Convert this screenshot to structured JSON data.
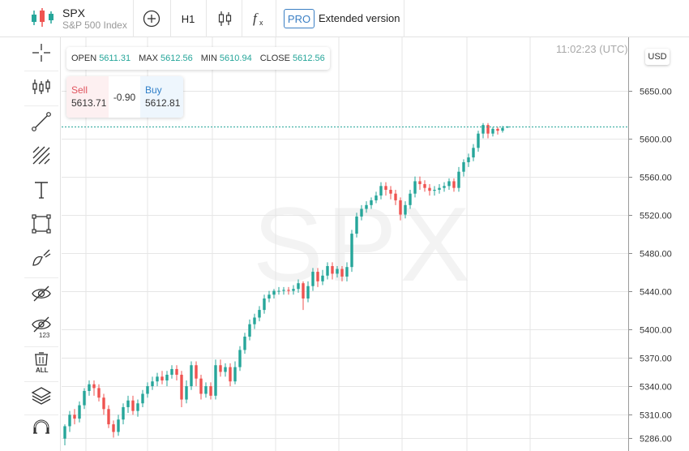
{
  "header": {
    "symbol": "SPX",
    "name": "S&P 500 Index",
    "timeframe": "H1",
    "pro_label": "PRO",
    "extended_label": "Extended version",
    "icons": [
      "candlestick-logo-icon",
      "add-circle-icon",
      "candle-type-icon",
      "function-fx-icon"
    ]
  },
  "toolbar": {
    "tools": [
      "crosshair-icon",
      "bars-icon",
      "trend-line-icon",
      "fibonacci-icon",
      "text-tool-icon",
      "rectangle-tool-icon",
      "brush-icon",
      "hide-drawings-icon",
      "hide-indicators-icon",
      "delete-all-icon",
      "layers-icon",
      "magnet-icon"
    ],
    "delete_all_label": "ALL",
    "hide_indicators_label": "123"
  },
  "ohlc": {
    "open_label": "OPEN",
    "open": "5611.31",
    "max_label": "MAX",
    "max": "5612.56",
    "min_label": "MIN",
    "min": "5610.94",
    "close_label": "CLOSE",
    "close": "5612.56"
  },
  "trade": {
    "sell_label": "Sell",
    "sell_price": "5613.71",
    "change": "-0.90",
    "buy_label": "Buy",
    "buy_price": "5612.81"
  },
  "clock": "11:02:23 (UTC)",
  "currency": "USD",
  "watermark": "SPX",
  "colors": {
    "up": "#26a69a",
    "down": "#ef5350",
    "grid": "#e6e6e6",
    "accent": "#3b7fc4",
    "price_line": "#26a69a"
  },
  "chart_data": {
    "type": "candlestick",
    "y_ticks": [
      "5650.00",
      "5600.00",
      "5560.00",
      "5520.00",
      "5480.00",
      "5440.00",
      "5400.00",
      "5370.00",
      "5340.00",
      "5310.00",
      "5286.00"
    ],
    "ylim": [
      5272,
      5706
    ],
    "last_price": 5612.56,
    "candles": [
      [
        5285,
        5298,
        5278,
        5300
      ],
      [
        5298,
        5310,
        5292,
        5314
      ],
      [
        5310,
        5306,
        5300,
        5316
      ],
      [
        5306,
        5320,
        5302,
        5324
      ],
      [
        5320,
        5335,
        5316,
        5338
      ],
      [
        5335,
        5342,
        5330,
        5346
      ],
      [
        5342,
        5338,
        5330,
        5346
      ],
      [
        5338,
        5328,
        5324,
        5342
      ],
      [
        5328,
        5316,
        5310,
        5332
      ],
      [
        5316,
        5300,
        5296,
        5320
      ],
      [
        5300,
        5292,
        5286,
        5304
      ],
      [
        5292,
        5305,
        5288,
        5310
      ],
      [
        5305,
        5318,
        5300,
        5322
      ],
      [
        5318,
        5325,
        5312,
        5330
      ],
      [
        5325,
        5314,
        5310,
        5330
      ],
      [
        5314,
        5322,
        5308,
        5326
      ],
      [
        5322,
        5332,
        5318,
        5336
      ],
      [
        5332,
        5340,
        5328,
        5344
      ],
      [
        5340,
        5345,
        5336,
        5350
      ],
      [
        5345,
        5350,
        5340,
        5354
      ],
      [
        5350,
        5346,
        5342,
        5356
      ],
      [
        5346,
        5352,
        5340,
        5356
      ],
      [
        5352,
        5358,
        5348,
        5362
      ],
      [
        5358,
        5352,
        5346,
        5362
      ],
      [
        5352,
        5326,
        5318,
        5356
      ],
      [
        5326,
        5340,
        5322,
        5346
      ],
      [
        5340,
        5362,
        5336,
        5366
      ],
      [
        5362,
        5348,
        5340,
        5366
      ],
      [
        5348,
        5332,
        5326,
        5352
      ],
      [
        5332,
        5340,
        5328,
        5344
      ],
      [
        5340,
        5330,
        5326,
        5344
      ],
      [
        5330,
        5362,
        5326,
        5368
      ],
      [
        5362,
        5355,
        5350,
        5368
      ],
      [
        5355,
        5360,
        5350,
        5364
      ],
      [
        5360,
        5345,
        5340,
        5364
      ],
      [
        5345,
        5360,
        5342,
        5366
      ],
      [
        5360,
        5378,
        5356,
        5382
      ],
      [
        5378,
        5392,
        5374,
        5396
      ],
      [
        5392,
        5405,
        5388,
        5410
      ],
      [
        5405,
        5412,
        5400,
        5416
      ],
      [
        5412,
        5420,
        5408,
        5424
      ],
      [
        5420,
        5432,
        5416,
        5436
      ],
      [
        5432,
        5436,
        5428,
        5440
      ],
      [
        5436,
        5440,
        5432,
        5442
      ],
      [
        5440,
        5440,
        5436,
        5444
      ],
      [
        5440,
        5441,
        5436,
        5444
      ],
      [
        5441,
        5440,
        5436,
        5444
      ],
      [
        5440,
        5442,
        5436,
        5446
      ],
      [
        5442,
        5448,
        5438,
        5452
      ],
      [
        5448,
        5432,
        5420,
        5450
      ],
      [
        5432,
        5445,
        5428,
        5450
      ],
      [
        5445,
        5460,
        5440,
        5464
      ],
      [
        5460,
        5450,
        5444,
        5464
      ],
      [
        5450,
        5456,
        5446,
        5462
      ],
      [
        5456,
        5466,
        5452,
        5470
      ],
      [
        5466,
        5458,
        5452,
        5470
      ],
      [
        5458,
        5463,
        5454,
        5466
      ],
      [
        5463,
        5455,
        5450,
        5466
      ],
      [
        5455,
        5465,
        5450,
        5470
      ],
      [
        5465,
        5500,
        5460,
        5504
      ],
      [
        5500,
        5518,
        5496,
        5522
      ],
      [
        5518,
        5526,
        5514,
        5530
      ],
      [
        5526,
        5530,
        5522,
        5534
      ],
      [
        5530,
        5535,
        5526,
        5538
      ],
      [
        5535,
        5540,
        5532,
        5544
      ],
      [
        5540,
        5550,
        5536,
        5554
      ],
      [
        5550,
        5546,
        5540,
        5554
      ],
      [
        5546,
        5542,
        5536,
        5550
      ],
      [
        5542,
        5535,
        5530,
        5546
      ],
      [
        5535,
        5520,
        5514,
        5538
      ],
      [
        5520,
        5530,
        5516,
        5534
      ],
      [
        5530,
        5542,
        5526,
        5546
      ],
      [
        5542,
        5555,
        5538,
        5560
      ],
      [
        5555,
        5552,
        5546,
        5560
      ],
      [
        5552,
        5548,
        5544,
        5556
      ],
      [
        5548,
        5545,
        5540,
        5552
      ],
      [
        5545,
        5546,
        5540,
        5550
      ],
      [
        5546,
        5548,
        5542,
        5552
      ],
      [
        5548,
        5550,
        5544,
        5554
      ],
      [
        5550,
        5555,
        5546,
        5558
      ],
      [
        5555,
        5548,
        5544,
        5558
      ],
      [
        5548,
        5565,
        5544,
        5570
      ],
      [
        5565,
        5575,
        5560,
        5578
      ],
      [
        5575,
        5580,
        5570,
        5584
      ],
      [
        5580,
        5590,
        5576,
        5594
      ],
      [
        5590,
        5605,
        5586,
        5608
      ],
      [
        5605,
        5614,
        5600,
        5616
      ],
      [
        5614,
        5605,
        5600,
        5616
      ],
      [
        5605,
        5610,
        5602,
        5612
      ],
      [
        5610,
        5608,
        5604,
        5612
      ],
      [
        5608,
        5611,
        5606,
        5613
      ],
      [
        5611.31,
        5612.56,
        5610.94,
        5612.56
      ]
    ]
  }
}
